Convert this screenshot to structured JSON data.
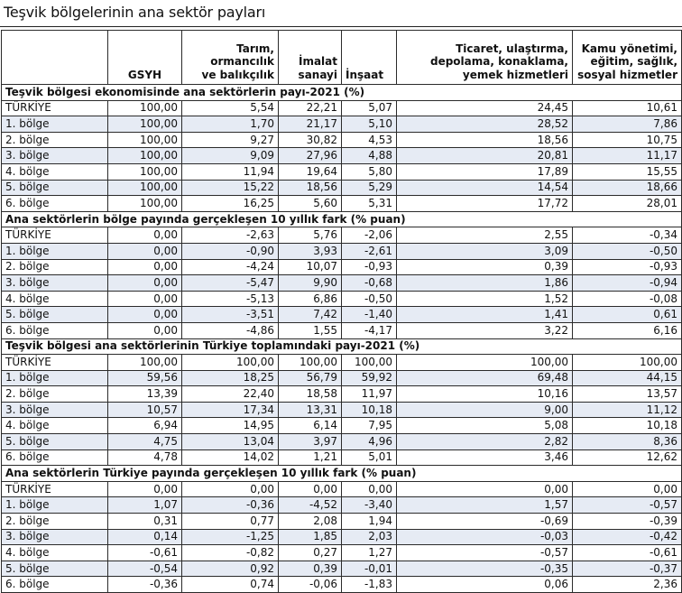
{
  "title": "Teşvik bölgelerinin ana sektör payları",
  "headers": [
    "",
    "GSYH",
    "Tarım,\normancılık\nve balıkçılık",
    "İmalat\nsanayi",
    "İnşaat",
    "Ticaret, ulaştırma,\ndepolama, konaklama,\nyemek hizmetleri",
    "Kamu yönetimi,\neğitim, sağlık,\nsosyal hizmetler"
  ],
  "sections": [
    {
      "title": "Teşvik bölgesi ekonomisinde ana sektörlerin payı-2021 (%)",
      "rows": [
        [
          "TÜRKİYE",
          "100,00",
          "5,54",
          "22,21",
          "5,07",
          "24,45",
          "10,61"
        ],
        [
          "1. bölge",
          "100,00",
          "1,70",
          "21,17",
          "5,10",
          "28,52",
          "7,86"
        ],
        [
          "2. bölge",
          "100,00",
          "9,27",
          "30,82",
          "4,53",
          "18,56",
          "10,75"
        ],
        [
          "3. bölge",
          "100,00",
          "9,09",
          "27,96",
          "4,88",
          "20,81",
          "11,17"
        ],
        [
          "4. bölge",
          "100,00",
          "11,94",
          "19,64",
          "5,80",
          "17,89",
          "15,55"
        ],
        [
          "5. bölge",
          "100,00",
          "15,22",
          "18,56",
          "5,29",
          "14,54",
          "18,66"
        ],
        [
          "6. bölge",
          "100,00",
          "16,25",
          "5,60",
          "5,31",
          "17,72",
          "28,01"
        ]
      ]
    },
    {
      "title": "Ana sektörlerin bölge payında gerçekleşen 10 yıllık fark (% puan)",
      "rows": [
        [
          "TÜRKİYE",
          "0,00",
          "-2,63",
          "5,76",
          "-2,06",
          "2,55",
          "-0,34"
        ],
        [
          "1. bölge",
          "0,00",
          "-0,90",
          "3,93",
          "-2,61",
          "3,09",
          "-0,50"
        ],
        [
          "2. bölge",
          "0,00",
          "-4,24",
          "10,07",
          "-0,93",
          "0,39",
          "-0,93"
        ],
        [
          "3. bölge",
          "0,00",
          "-5,47",
          "9,90",
          "-0,68",
          "1,86",
          "-0,94"
        ],
        [
          "4. bölge",
          "0,00",
          "-5,13",
          "6,86",
          "-0,50",
          "1,52",
          "-0,08"
        ],
        [
          "5. bölge",
          "0,00",
          "-3,51",
          "7,42",
          "-1,40",
          "1,41",
          "0,61"
        ],
        [
          "6. bölge",
          "0,00",
          "-4,86",
          "1,55",
          "-4,17",
          "3,22",
          "6,16"
        ]
      ]
    },
    {
      "title": "Teşvik bölgesi ana sektörlerinin Türkiye toplamındaki payı-2021 (%)",
      "rows": [
        [
          "TÜRKİYE",
          "100,00",
          "100,00",
          "100,00",
          "100,00",
          "100,00",
          "100,00"
        ],
        [
          "1. bölge",
          "59,56",
          "18,25",
          "56,79",
          "59,92",
          "69,48",
          "44,15"
        ],
        [
          "2. bölge",
          "13,39",
          "22,40",
          "18,58",
          "11,97",
          "10,16",
          "13,57"
        ],
        [
          "3. bölge",
          "10,57",
          "17,34",
          "13,31",
          "10,18",
          "9,00",
          "11,12"
        ],
        [
          "4. bölge",
          "6,94",
          "14,95",
          "6,14",
          "7,95",
          "5,08",
          "10,18"
        ],
        [
          "5. bölge",
          "4,75",
          "13,04",
          "3,97",
          "4,96",
          "2,82",
          "8,36"
        ],
        [
          "6. bölge",
          "4,78",
          "14,02",
          "1,21",
          "5,01",
          "3,46",
          "12,62"
        ]
      ]
    },
    {
      "title": "Ana sektörlerin Türkiye payında gerçekleşen 10 yıllık fark (% puan)",
      "rows": [
        [
          "TÜRKİYE",
          "0,00",
          "0,00",
          "0,00",
          "0,00",
          "0,00",
          "0,00"
        ],
        [
          "1. bölge",
          "1,07",
          "-0,36",
          "-4,52",
          "-3,40",
          "1,57",
          "-0,57"
        ],
        [
          "2. bölge",
          "0,31",
          "0,77",
          "2,08",
          "1,94",
          "-0,69",
          "-0,39"
        ],
        [
          "3. bölge",
          "0,14",
          "-1,25",
          "1,85",
          "2,03",
          "-0,03",
          "-0,42"
        ],
        [
          "4. bölge",
          "-0,61",
          "-0,82",
          "0,27",
          "1,27",
          "-0,57",
          "-0,61"
        ],
        [
          "5. bölge",
          "-0,54",
          "0,92",
          "0,39",
          "-0,01",
          "-0,35",
          "-0,37"
        ],
        [
          "6. bölge",
          "-0,36",
          "0,74",
          "-0,06",
          "-1,83",
          "0,06",
          "2,36"
        ]
      ]
    }
  ],
  "colors": {
    "row_alt": "#e6ebf4",
    "border": "#2b2b2b"
  }
}
